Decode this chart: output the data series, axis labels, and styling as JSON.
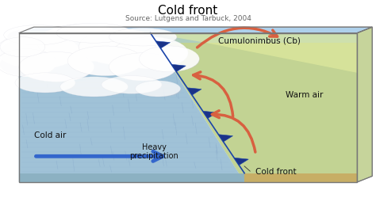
{
  "title": "Cold front",
  "subtitle": "Source: Lutgens and Tarbuck, 2004",
  "title_fontsize": 11,
  "subtitle_fontsize": 6.5,
  "fig_width": 4.74,
  "fig_height": 2.51,
  "dpi": 100,
  "labels": {
    "cumulonimbus": "Cumulonimbus (Cb)",
    "warm_air": "Warm air",
    "cold_air": "Cold air",
    "heavy_precip": "Heavy\nprecipitation",
    "cold_front": "Cold front"
  },
  "colors": {
    "bg": "#f5f5f5",
    "box_border": "#777777",
    "top_face_left": "#a8c8e0",
    "top_face_right": "#c8d890",
    "cold_air_fill": "#90b8d0",
    "cold_air_bottom": "#7aaabb",
    "warm_air_fill": "#b8cc80",
    "warm_sky": "#d8e870",
    "sky_blue": "#a0c8e8",
    "sky_yellow": "#e8e888",
    "ground_cold": "#8ab0c0",
    "ground_warm": "#c8aa60",
    "ground_side": "#b09050",
    "cloud_white": "#f8f8f8",
    "cloud_grey": "#d8d8e0",
    "rain_blue": "#5588aa",
    "front_blue": "#1a44aa",
    "triangle_blue": "#1a3388",
    "arrow_warm": "#d86040",
    "arrow_cold": "#3366cc",
    "text_dark": "#111111",
    "text_medium": "#333333",
    "rain_grid": "#88aacc"
  }
}
